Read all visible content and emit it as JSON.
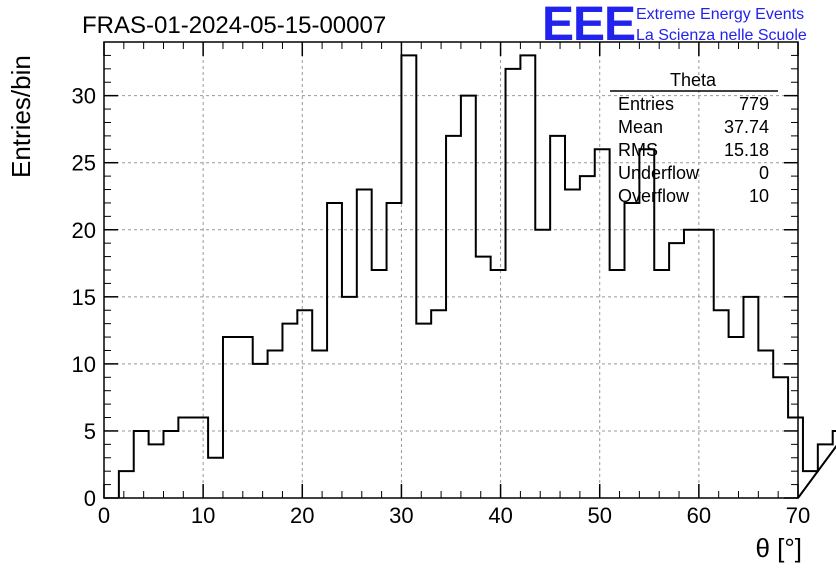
{
  "header": {
    "title": "FRAS-01-2024-05-15-00007",
    "logo_text": "EEE",
    "logo_line1": "Extreme Energy Events",
    "logo_line2": "La Scienza nelle Scuole"
  },
  "stats_box": {
    "name": "Theta",
    "rows": [
      {
        "label": "Entries",
        "value": "779"
      },
      {
        "label": "Mean",
        "value": "37.74"
      },
      {
        "label": "RMS",
        "value": "15.18"
      },
      {
        "label": "Underflow",
        "value": "0"
      },
      {
        "label": "Overflow",
        "value": "10"
      }
    ]
  },
  "colors": {
    "logo": "#2222ee",
    "line": "#000000",
    "grid": "#999999"
  },
  "chart_data": {
    "type": "bar",
    "style": "step-histogram",
    "xlabel": "θ [°]",
    "ylabel": "Entries/bin",
    "xlim": [
      0,
      70
    ],
    "ylim": [
      0,
      34
    ],
    "grid": true,
    "bin_width": 1.5,
    "bin_edges_start": 1.5,
    "values": [
      2,
      5,
      4,
      5,
      6,
      6,
      3,
      12,
      12,
      10,
      11,
      13,
      14,
      11,
      22,
      15,
      23,
      17,
      22,
      33,
      13,
      14,
      27,
      30,
      18,
      17,
      32,
      33,
      20,
      27,
      23,
      24,
      26,
      17,
      22,
      26,
      17,
      19,
      20,
      20,
      14,
      12,
      15,
      11,
      9,
      6,
      2,
      4,
      5
    ],
    "xticks": [
      0,
      10,
      20,
      30,
      40,
      50,
      60,
      70
    ],
    "yticks": [
      0,
      5,
      10,
      15,
      20,
      25,
      30
    ]
  }
}
